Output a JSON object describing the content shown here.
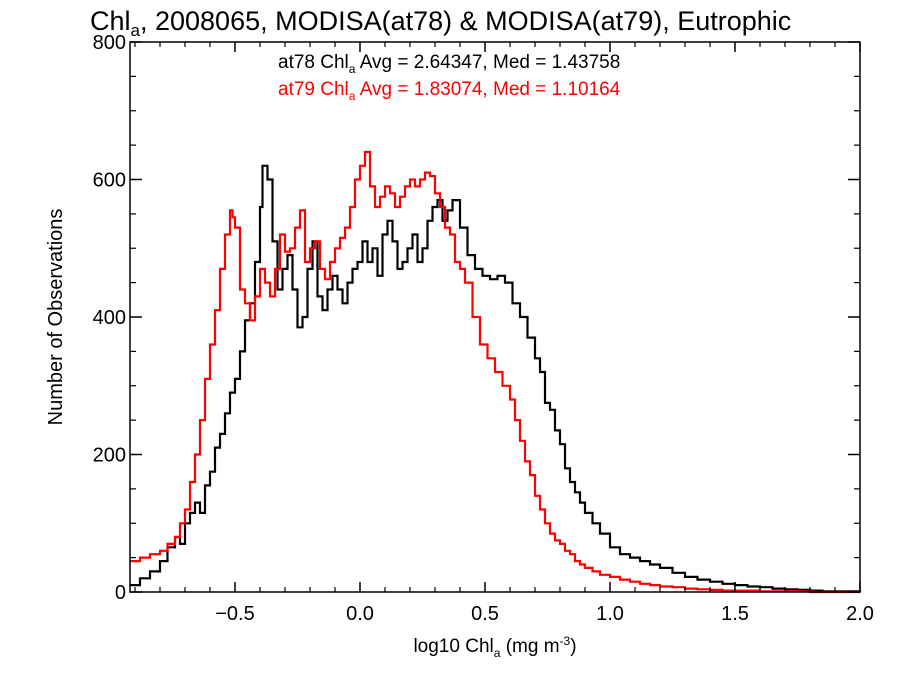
{
  "chart_data": {
    "type": "line",
    "title": {
      "prefix": "Chl",
      "sub": "a",
      "suffix": ", 2008065, MODISA(at78) & MODISA(at79), Eutrophic"
    },
    "xlabel": {
      "prefix": "log10 Chl",
      "sub": "a",
      "mid": " (mg m",
      "sup": "-3",
      "suffix": ")"
    },
    "ylabel": "Number of Observations",
    "xlim": [
      -0.92,
      2.0
    ],
    "ylim": [
      0,
      800
    ],
    "xticks": [
      -0.5,
      0.0,
      0.5,
      1.0,
      1.5,
      2.0
    ],
    "xtick_labels": [
      "−0.5",
      "0.0",
      "0.5",
      "1.0",
      "1.5",
      "2.0"
    ],
    "yticks": [
      0,
      200,
      400,
      600,
      800
    ],
    "ytick_labels": [
      "0",
      "200",
      "400",
      "600",
      "800"
    ],
    "grid": false,
    "stats": [
      {
        "prefix": "at78 Chl",
        "sub": "a",
        "suffix": " Avg = 2.64347, Med = 1.43758",
        "color": "#000000"
      },
      {
        "prefix": "at79 Chl",
        "sub": "a",
        "suffix": " Avg = 1.83074, Med = 1.10164",
        "color": "#ff0000"
      }
    ],
    "series": [
      {
        "color": "#000000",
        "points": [
          [
            -0.92,
            10
          ],
          [
            -0.88,
            20
          ],
          [
            -0.84,
            30
          ],
          [
            -0.8,
            45
          ],
          [
            -0.77,
            65
          ],
          [
            -0.74,
            80
          ],
          [
            -0.72,
            70
          ],
          [
            -0.7,
            100
          ],
          [
            -0.68,
            115
          ],
          [
            -0.66,
            130
          ],
          [
            -0.64,
            115
          ],
          [
            -0.62,
            155
          ],
          [
            -0.6,
            175
          ],
          [
            -0.58,
            210
          ],
          [
            -0.56,
            230
          ],
          [
            -0.54,
            260
          ],
          [
            -0.52,
            290
          ],
          [
            -0.5,
            310
          ],
          [
            -0.48,
            350
          ],
          [
            -0.46,
            395
          ],
          [
            -0.44,
            420
          ],
          [
            -0.42,
            480
          ],
          [
            -0.4,
            560
          ],
          [
            -0.39,
            620
          ],
          [
            -0.37,
            600
          ],
          [
            -0.35,
            510
          ],
          [
            -0.33,
            440
          ],
          [
            -0.31,
            470
          ],
          [
            -0.29,
            490
          ],
          [
            -0.27,
            440
          ],
          [
            -0.25,
            385
          ],
          [
            -0.23,
            400
          ],
          [
            -0.21,
            470
          ],
          [
            -0.19,
            510
          ],
          [
            -0.17,
            430
          ],
          [
            -0.15,
            410
          ],
          [
            -0.13,
            440
          ],
          [
            -0.11,
            460
          ],
          [
            -0.09,
            440
          ],
          [
            -0.07,
            420
          ],
          [
            -0.05,
            450
          ],
          [
            -0.03,
            470
          ],
          [
            -0.01,
            480
          ],
          [
            0.01,
            510
          ],
          [
            0.03,
            480
          ],
          [
            0.05,
            500
          ],
          [
            0.07,
            460
          ],
          [
            0.09,
            520
          ],
          [
            0.11,
            540
          ],
          [
            0.13,
            510
          ],
          [
            0.15,
            470
          ],
          [
            0.17,
            480
          ],
          [
            0.19,
            500
          ],
          [
            0.21,
            520
          ],
          [
            0.23,
            480
          ],
          [
            0.25,
            500
          ],
          [
            0.27,
            540
          ],
          [
            0.29,
            560
          ],
          [
            0.31,
            570
          ],
          [
            0.33,
            540
          ],
          [
            0.35,
            555
          ],
          [
            0.37,
            570
          ],
          [
            0.4,
            530
          ],
          [
            0.43,
            490
          ],
          [
            0.46,
            470
          ],
          [
            0.49,
            460
          ],
          [
            0.52,
            455
          ],
          [
            0.55,
            460
          ],
          [
            0.58,
            450
          ],
          [
            0.61,
            420
          ],
          [
            0.64,
            400
          ],
          [
            0.67,
            370
          ],
          [
            0.7,
            340
          ],
          [
            0.72,
            320
          ],
          [
            0.74,
            275
          ],
          [
            0.76,
            265
          ],
          [
            0.78,
            235
          ],
          [
            0.8,
            215
          ],
          [
            0.82,
            180
          ],
          [
            0.84,
            160
          ],
          [
            0.86,
            145
          ],
          [
            0.88,
            130
          ],
          [
            0.9,
            115
          ],
          [
            0.93,
            100
          ],
          [
            0.96,
            85
          ],
          [
            1.0,
            65
          ],
          [
            1.04,
            55
          ],
          [
            1.08,
            50
          ],
          [
            1.12,
            45
          ],
          [
            1.16,
            40
          ],
          [
            1.2,
            35
          ],
          [
            1.25,
            28
          ],
          [
            1.3,
            22
          ],
          [
            1.35,
            18
          ],
          [
            1.4,
            15
          ],
          [
            1.45,
            12
          ],
          [
            1.5,
            10
          ],
          [
            1.55,
            8
          ],
          [
            1.6,
            7
          ],
          [
            1.65,
            5
          ],
          [
            1.7,
            4
          ],
          [
            1.75,
            3
          ],
          [
            1.8,
            2
          ],
          [
            1.85,
            1
          ],
          [
            1.9,
            1
          ],
          [
            2.0,
            0
          ]
        ]
      },
      {
        "color": "#ff0000",
        "points": [
          [
            -0.92,
            45
          ],
          [
            -0.88,
            50
          ],
          [
            -0.84,
            55
          ],
          [
            -0.8,
            60
          ],
          [
            -0.77,
            70
          ],
          [
            -0.74,
            80
          ],
          [
            -0.72,
            100
          ],
          [
            -0.7,
            120
          ],
          [
            -0.68,
            160
          ],
          [
            -0.66,
            200
          ],
          [
            -0.64,
            250
          ],
          [
            -0.62,
            310
          ],
          [
            -0.6,
            360
          ],
          [
            -0.58,
            410
          ],
          [
            -0.56,
            470
          ],
          [
            -0.54,
            520
          ],
          [
            -0.52,
            555
          ],
          [
            -0.51,
            545
          ],
          [
            -0.5,
            530
          ],
          [
            -0.48,
            440
          ],
          [
            -0.46,
            420
          ],
          [
            -0.44,
            395
          ],
          [
            -0.42,
            430
          ],
          [
            -0.4,
            470
          ],
          [
            -0.38,
            450
          ],
          [
            -0.36,
            430
          ],
          [
            -0.34,
            470
          ],
          [
            -0.32,
            520
          ],
          [
            -0.3,
            495
          ],
          [
            -0.28,
            500
          ],
          [
            -0.26,
            530
          ],
          [
            -0.24,
            555
          ],
          [
            -0.22,
            480
          ],
          [
            -0.2,
            500
          ],
          [
            -0.18,
            510
          ],
          [
            -0.16,
            470
          ],
          [
            -0.14,
            455
          ],
          [
            -0.12,
            480
          ],
          [
            -0.1,
            500
          ],
          [
            -0.08,
            515
          ],
          [
            -0.06,
            530
          ],
          [
            -0.04,
            560
          ],
          [
            -0.02,
            600
          ],
          [
            0.0,
            620
          ],
          [
            0.02,
            640
          ],
          [
            0.04,
            590
          ],
          [
            0.06,
            560
          ],
          [
            0.08,
            575
          ],
          [
            0.1,
            590
          ],
          [
            0.12,
            580
          ],
          [
            0.14,
            560
          ],
          [
            0.16,
            575
          ],
          [
            0.18,
            590
          ],
          [
            0.2,
            600
          ],
          [
            0.22,
            590
          ],
          [
            0.24,
            600
          ],
          [
            0.26,
            610
          ],
          [
            0.28,
            605
          ],
          [
            0.3,
            580
          ],
          [
            0.32,
            560
          ],
          [
            0.34,
            530
          ],
          [
            0.36,
            520
          ],
          [
            0.38,
            480
          ],
          [
            0.4,
            470
          ],
          [
            0.42,
            450
          ],
          [
            0.45,
            400
          ],
          [
            0.48,
            360
          ],
          [
            0.51,
            340
          ],
          [
            0.54,
            320
          ],
          [
            0.57,
            300
          ],
          [
            0.6,
            280
          ],
          [
            0.62,
            250
          ],
          [
            0.64,
            220
          ],
          [
            0.66,
            190
          ],
          [
            0.68,
            170
          ],
          [
            0.7,
            140
          ],
          [
            0.72,
            120
          ],
          [
            0.74,
            100
          ],
          [
            0.76,
            85
          ],
          [
            0.78,
            75
          ],
          [
            0.8,
            70
          ],
          [
            0.82,
            60
          ],
          [
            0.84,
            55
          ],
          [
            0.86,
            45
          ],
          [
            0.88,
            40
          ],
          [
            0.9,
            35
          ],
          [
            0.93,
            30
          ],
          [
            0.96,
            25
          ],
          [
            1.0,
            22
          ],
          [
            1.04,
            18
          ],
          [
            1.08,
            15
          ],
          [
            1.12,
            12
          ],
          [
            1.16,
            10
          ],
          [
            1.2,
            8
          ],
          [
            1.25,
            7
          ],
          [
            1.3,
            5
          ],
          [
            1.35,
            4
          ],
          [
            1.4,
            3
          ],
          [
            1.45,
            2
          ],
          [
            1.5,
            2
          ],
          [
            1.6,
            1
          ],
          [
            1.7,
            1
          ],
          [
            1.8,
            0
          ],
          [
            2.0,
            0
          ]
        ]
      }
    ]
  }
}
